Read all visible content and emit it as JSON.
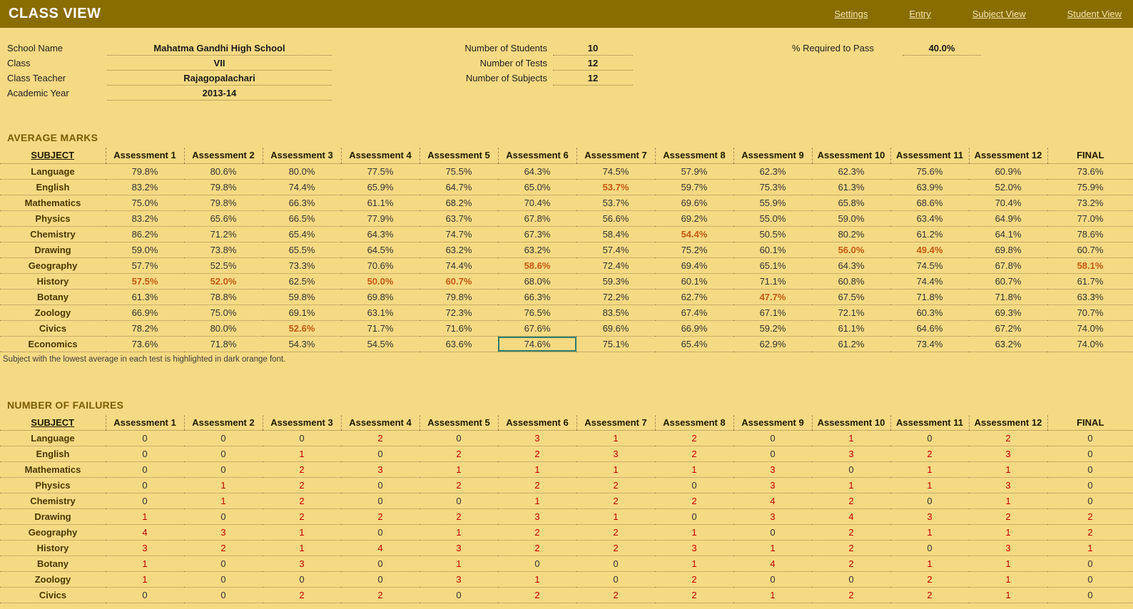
{
  "header": {
    "title": "CLASS VIEW",
    "nav": [
      {
        "label": "Settings"
      },
      {
        "label": "Entry"
      },
      {
        "label": "Subject View"
      },
      {
        "label": "Student View"
      }
    ]
  },
  "info": {
    "left": [
      {
        "label": "School Name",
        "value": "Mahatma Gandhi High School"
      },
      {
        "label": "Class",
        "value": "VII"
      },
      {
        "label": "Class Teacher",
        "value": "Rajagopalachari"
      },
      {
        "label": "Academic Year",
        "value": "2013-14"
      }
    ],
    "middle": [
      {
        "label": "Number of Students",
        "value": "10"
      },
      {
        "label": "Number of Tests",
        "value": "12"
      },
      {
        "label": "Number of Subjects",
        "value": "12"
      }
    ],
    "right": [
      {
        "label": "% Required to Pass",
        "value": "40.0%"
      }
    ]
  },
  "average_marks": {
    "title": "AVERAGE MARKS",
    "footnote": "Subject with the lowest average in each test is highlighted in dark orange font.",
    "columns": [
      "SUBJECT",
      "Assessment 1",
      "Assessment 2",
      "Assessment 3",
      "Assessment 4",
      "Assessment 5",
      "Assessment 6",
      "Assessment 7",
      "Assessment 8",
      "Assessment 9",
      "Assessment 10",
      "Assessment 11",
      "Assessment 12",
      "FINAL"
    ],
    "selected": {
      "row": 11,
      "col": 5
    },
    "rows": [
      {
        "subject": "Language",
        "orange": [],
        "values": [
          "79.8%",
          "80.6%",
          "80.0%",
          "77.5%",
          "75.5%",
          "64.3%",
          "74.5%",
          "57.9%",
          "62.3%",
          "62.3%",
          "75.6%",
          "60.9%",
          "73.6%"
        ]
      },
      {
        "subject": "English",
        "orange": [
          6
        ],
        "values": [
          "83.2%",
          "79.8%",
          "74.4%",
          "65.9%",
          "64.7%",
          "65.0%",
          "53.7%",
          "59.7%",
          "75.3%",
          "61.3%",
          "63.9%",
          "52.0%",
          "75.9%"
        ]
      },
      {
        "subject": "Mathematics",
        "orange": [],
        "values": [
          "75.0%",
          "79.8%",
          "66.3%",
          "61.1%",
          "68.2%",
          "70.4%",
          "53.7%",
          "69.6%",
          "55.9%",
          "65.8%",
          "68.6%",
          "70.4%",
          "73.2%"
        ]
      },
      {
        "subject": "Physics",
        "orange": [],
        "values": [
          "83.2%",
          "65.6%",
          "66.5%",
          "77.9%",
          "63.7%",
          "67.8%",
          "56.6%",
          "69.2%",
          "55.0%",
          "59.0%",
          "63.4%",
          "64.9%",
          "77.0%"
        ]
      },
      {
        "subject": "Chemistry",
        "orange": [
          7
        ],
        "values": [
          "86.2%",
          "71.2%",
          "65.4%",
          "64.3%",
          "74.7%",
          "67.3%",
          "58.4%",
          "54.4%",
          "50.5%",
          "80.2%",
          "61.2%",
          "64.1%",
          "78.6%"
        ]
      },
      {
        "subject": "Drawing",
        "orange": [
          9,
          10
        ],
        "values": [
          "59.0%",
          "73.8%",
          "65.5%",
          "64.5%",
          "63.2%",
          "63.2%",
          "57.4%",
          "75.2%",
          "60.1%",
          "56.0%",
          "49.4%",
          "69.8%",
          "60.7%"
        ]
      },
      {
        "subject": "Geography",
        "orange": [
          5,
          12
        ],
        "values": [
          "57.7%",
          "52.5%",
          "73.3%",
          "70.6%",
          "74.4%",
          "58.6%",
          "72.4%",
          "69.4%",
          "65.1%",
          "64.3%",
          "74.5%",
          "67.8%",
          "58.1%"
        ]
      },
      {
        "subject": "History",
        "orange": [
          0,
          1,
          3,
          4
        ],
        "values": [
          "57.5%",
          "52.0%",
          "62.5%",
          "50.0%",
          "60.7%",
          "68.0%",
          "59.3%",
          "60.1%",
          "71.1%",
          "60.8%",
          "74.4%",
          "60.7%",
          "61.7%"
        ]
      },
      {
        "subject": "Botany",
        "orange": [
          8
        ],
        "values": [
          "61.3%",
          "78.8%",
          "59.8%",
          "69.8%",
          "79.8%",
          "66.3%",
          "72.2%",
          "62.7%",
          "47.7%",
          "67.5%",
          "71.8%",
          "71.8%",
          "63.3%"
        ]
      },
      {
        "subject": "Zoology",
        "orange": [],
        "values": [
          "66.9%",
          "75.0%",
          "69.1%",
          "63.1%",
          "72.3%",
          "76.5%",
          "83.5%",
          "67.4%",
          "67.1%",
          "72.1%",
          "60.3%",
          "69.3%",
          "70.7%"
        ]
      },
      {
        "subject": "Civics",
        "orange": [
          2
        ],
        "values": [
          "78.2%",
          "80.0%",
          "52.6%",
          "71.7%",
          "71.6%",
          "67.6%",
          "69.6%",
          "66.9%",
          "59.2%",
          "61.1%",
          "64.6%",
          "67.2%",
          "74.0%"
        ]
      },
      {
        "subject": "Economics",
        "orange": [],
        "values": [
          "73.6%",
          "71.8%",
          "54.3%",
          "54.5%",
          "63.6%",
          "74.6%",
          "75.1%",
          "65.4%",
          "62.9%",
          "61.2%",
          "73.4%",
          "63.2%",
          "74.0%"
        ]
      }
    ]
  },
  "failures": {
    "title": "NUMBER OF FAILURES",
    "columns": [
      "SUBJECT",
      "Assessment 1",
      "Assessment 2",
      "Assessment 3",
      "Assessment 4",
      "Assessment 5",
      "Assessment 6",
      "Assessment 7",
      "Assessment 8",
      "Assessment 9",
      "Assessment 10",
      "Assessment 11",
      "Assessment 12",
      "FINAL"
    ],
    "rows": [
      {
        "subject": "Language",
        "values": [
          "0",
          "0",
          "0",
          "2",
          "0",
          "3",
          "1",
          "2",
          "0",
          "1",
          "0",
          "2",
          "0"
        ]
      },
      {
        "subject": "English",
        "values": [
          "0",
          "0",
          "1",
          "0",
          "2",
          "2",
          "3",
          "2",
          "0",
          "3",
          "2",
          "3",
          "0"
        ]
      },
      {
        "subject": "Mathematics",
        "values": [
          "0",
          "0",
          "2",
          "3",
          "1",
          "1",
          "1",
          "1",
          "3",
          "0",
          "1",
          "1",
          "0"
        ]
      },
      {
        "subject": "Physics",
        "values": [
          "0",
          "1",
          "2",
          "0",
          "2",
          "2",
          "2",
          "0",
          "3",
          "1",
          "1",
          "3",
          "0"
        ]
      },
      {
        "subject": "Chemistry",
        "values": [
          "0",
          "1",
          "2",
          "0",
          "0",
          "1",
          "2",
          "2",
          "4",
          "2",
          "0",
          "1",
          "0"
        ]
      },
      {
        "subject": "Drawing",
        "values": [
          "1",
          "0",
          "2",
          "2",
          "2",
          "3",
          "1",
          "0",
          "3",
          "4",
          "3",
          "2",
          "2"
        ]
      },
      {
        "subject": "Geography",
        "values": [
          "4",
          "3",
          "1",
          "0",
          "1",
          "2",
          "2",
          "1",
          "0",
          "2",
          "1",
          "1",
          "2"
        ]
      },
      {
        "subject": "History",
        "values": [
          "3",
          "2",
          "1",
          "4",
          "3",
          "2",
          "2",
          "3",
          "1",
          "2",
          "0",
          "3",
          "1"
        ]
      },
      {
        "subject": "Botany",
        "values": [
          "1",
          "0",
          "3",
          "0",
          "1",
          "0",
          "0",
          "1",
          "4",
          "2",
          "1",
          "1",
          "0"
        ]
      },
      {
        "subject": "Zoology",
        "values": [
          "1",
          "0",
          "0",
          "0",
          "3",
          "1",
          "0",
          "2",
          "0",
          "0",
          "2",
          "1",
          "0"
        ]
      },
      {
        "subject": "Civics",
        "values": [
          "0",
          "0",
          "2",
          "2",
          "0",
          "2",
          "2",
          "2",
          "1",
          "2",
          "2",
          "1",
          "0"
        ]
      }
    ]
  }
}
